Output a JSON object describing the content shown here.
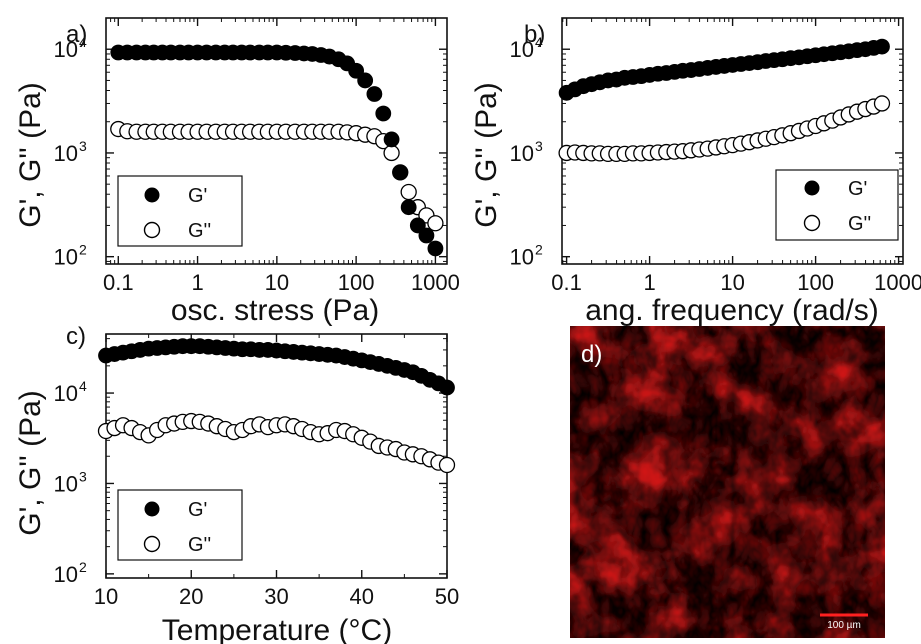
{
  "chart_data": [
    {
      "panel": "a)",
      "type": "scatter",
      "xlabel": "osc. stress (Pa)",
      "ylabel": "G', G'' (Pa)",
      "xscale": "log",
      "yscale": "log",
      "xlim": [
        0.07,
        1400
      ],
      "ylim": [
        85,
        20000
      ],
      "xticks": [
        0.1,
        1,
        10,
        100,
        1000
      ],
      "xtick_labels": [
        "0.1",
        "1",
        "10",
        "100",
        "1000"
      ],
      "yticks": [
        100,
        1000,
        10000
      ],
      "ytick_exps": [
        "2",
        "3",
        "4"
      ],
      "legend_position": "bottom-left",
      "series": [
        {
          "name": "G'",
          "marker": "filled-circle",
          "x": [
            0.1,
            0.13,
            0.17,
            0.22,
            0.28,
            0.36,
            0.46,
            0.6,
            0.77,
            1.0,
            1.3,
            1.7,
            2.2,
            2.8,
            3.6,
            4.6,
            6.0,
            7.7,
            10,
            13,
            17,
            22,
            28,
            36,
            46,
            60,
            77,
            100,
            130,
            170,
            220,
            280,
            360,
            460,
            600,
            770,
            1000
          ],
          "y": [
            9300,
            9300,
            9300,
            9300,
            9300,
            9300,
            9300,
            9300,
            9300,
            9300,
            9300,
            9300,
            9300,
            9300,
            9300,
            9300,
            9300,
            9300,
            9300,
            9250,
            9200,
            9100,
            9000,
            8800,
            8500,
            8000,
            7300,
            6200,
            5000,
            3700,
            2400,
            1350,
            650,
            300,
            200,
            160,
            120
          ]
        },
        {
          "name": "G''",
          "marker": "open-circle",
          "x": [
            0.1,
            0.13,
            0.17,
            0.22,
            0.28,
            0.36,
            0.46,
            0.6,
            0.77,
            1.0,
            1.3,
            1.7,
            2.2,
            2.8,
            3.6,
            4.6,
            6.0,
            7.7,
            10,
            13,
            17,
            22,
            28,
            36,
            46,
            60,
            77,
            100,
            130,
            170,
            220,
            280,
            360,
            460,
            600,
            770,
            1000
          ],
          "y": [
            1700,
            1620,
            1600,
            1600,
            1600,
            1600,
            1600,
            1600,
            1600,
            1600,
            1600,
            1600,
            1600,
            1600,
            1600,
            1600,
            1600,
            1600,
            1600,
            1600,
            1600,
            1600,
            1600,
            1600,
            1600,
            1600,
            1580,
            1550,
            1500,
            1450,
            1300,
            1000,
            650,
            420,
            300,
            250,
            210
          ]
        }
      ]
    },
    {
      "panel": "b)",
      "type": "scatter",
      "xlabel": "ang. frequency (rad/s)",
      "ylabel": "G', G'' (Pa)",
      "xscale": "log",
      "yscale": "log",
      "xlim": [
        0.088,
        1130
      ],
      "ylim": [
        85,
        20000
      ],
      "xticks": [
        0.1,
        1,
        10,
        100,
        1000
      ],
      "xtick_labels": [
        "0.1",
        "1",
        "10",
        "100",
        "1000"
      ],
      "yticks": [
        100,
        1000,
        10000
      ],
      "ytick_exps": [
        "2",
        "3",
        "4"
      ],
      "legend_position": "bottom-right",
      "series": [
        {
          "name": "G'",
          "marker": "filled-circle",
          "x": [
            0.1,
            0.126,
            0.159,
            0.2,
            0.251,
            0.316,
            0.398,
            0.501,
            0.631,
            0.794,
            1.0,
            1.26,
            1.59,
            2.0,
            2.51,
            3.16,
            3.98,
            5.01,
            6.31,
            7.94,
            10,
            12.6,
            15.9,
            20,
            25.1,
            31.6,
            39.8,
            50.1,
            63.1,
            79.4,
            100,
            126,
            159,
            200,
            251,
            316,
            398,
            501,
            631
          ],
          "y": [
            3800,
            4100,
            4400,
            4600,
            4800,
            5000,
            5100,
            5300,
            5400,
            5500,
            5650,
            5800,
            5900,
            6050,
            6200,
            6300,
            6450,
            6600,
            6750,
            6900,
            7050,
            7200,
            7350,
            7500,
            7700,
            7850,
            8000,
            8200,
            8350,
            8550,
            8750,
            8950,
            9150,
            9350,
            9550,
            9800,
            10000,
            10300,
            10600
          ]
        },
        {
          "name": "G''",
          "marker": "open-circle",
          "x": [
            0.1,
            0.126,
            0.159,
            0.2,
            0.251,
            0.316,
            0.398,
            0.501,
            0.631,
            0.794,
            1.0,
            1.26,
            1.59,
            2.0,
            2.51,
            3.16,
            3.98,
            5.01,
            6.31,
            7.94,
            10,
            12.6,
            15.9,
            20,
            25.1,
            31.6,
            39.8,
            50.1,
            63.1,
            79.4,
            100,
            126,
            159,
            200,
            251,
            316,
            398,
            501,
            631
          ],
          "y": [
            1000,
            1010,
            1000,
            990,
            990,
            980,
            980,
            980,
            990,
            990,
            1000,
            1010,
            1020,
            1030,
            1040,
            1060,
            1080,
            1100,
            1130,
            1160,
            1190,
            1230,
            1270,
            1320,
            1370,
            1420,
            1480,
            1550,
            1630,
            1720,
            1820,
            1930,
            2050,
            2200,
            2350,
            2500,
            2650,
            2800,
            3000
          ]
        }
      ]
    },
    {
      "panel": "c)",
      "type": "scatter",
      "xlabel": "Temperature (°C)",
      "ylabel": "G', G'' (Pa)",
      "xscale": "linear",
      "yscale": "log",
      "xlim": [
        10,
        50
      ],
      "ylim": [
        90,
        45000
      ],
      "xticks": [
        10,
        20,
        30,
        40,
        50
      ],
      "xtick_labels": [
        "10",
        "20",
        "30",
        "40",
        "50"
      ],
      "yticks": [
        100,
        1000,
        10000
      ],
      "ytick_exps": [
        "2",
        "3",
        "4"
      ],
      "legend_position": "bottom-left",
      "series": [
        {
          "name": "G'",
          "marker": "filled-circle",
          "x": [
            10,
            11,
            12,
            13,
            14,
            15,
            16,
            17,
            18,
            19,
            20,
            21,
            22,
            23,
            24,
            25,
            26,
            27,
            28,
            29,
            30,
            31,
            32,
            33,
            34,
            35,
            36,
            37,
            38,
            39,
            40,
            41,
            42,
            43,
            44,
            45,
            46,
            47,
            48,
            49,
            50
          ],
          "y": [
            26000,
            27000,
            28000,
            29000,
            30000,
            31000,
            31500,
            32000,
            32500,
            33000,
            33000,
            33000,
            32500,
            32000,
            31500,
            31000,
            30500,
            30500,
            30000,
            30000,
            29500,
            29000,
            28500,
            28000,
            27500,
            27000,
            26500,
            26000,
            25000,
            24000,
            23000,
            22000,
            21000,
            20000,
            19000,
            18000,
            17000,
            15500,
            14000,
            12800,
            11500
          ]
        },
        {
          "name": "G''",
          "marker": "open-circle",
          "x": [
            10,
            11,
            12,
            13,
            14,
            15,
            16,
            17,
            18,
            19,
            20,
            21,
            22,
            23,
            24,
            25,
            26,
            27,
            28,
            29,
            30,
            31,
            32,
            33,
            34,
            35,
            36,
            37,
            38,
            39,
            40,
            41,
            42,
            43,
            44,
            45,
            46,
            47,
            48,
            49,
            50
          ],
          "y": [
            3800,
            4100,
            4400,
            4100,
            3700,
            3400,
            3900,
            4400,
            4600,
            4800,
            4900,
            4800,
            4600,
            4300,
            4000,
            3700,
            3900,
            4300,
            4500,
            4200,
            4400,
            4500,
            4300,
            4000,
            3700,
            3500,
            3600,
            3900,
            3800,
            3500,
            3200,
            2900,
            2600,
            2500,
            2400,
            2200,
            2100,
            2000,
            1850,
            1700,
            1600
          ]
        }
      ]
    }
  ],
  "micrograph": {
    "panel_label": "d)",
    "scale_bar_label": "100 µm",
    "fluorescence_color": "#e21a1a",
    "scale_bar_color": "#ff2020"
  },
  "colors": {
    "axis": "#111111",
    "marker_fill": "#000000",
    "open_marker_fill": "#ffffff",
    "open_marker_stroke": "#000000"
  }
}
